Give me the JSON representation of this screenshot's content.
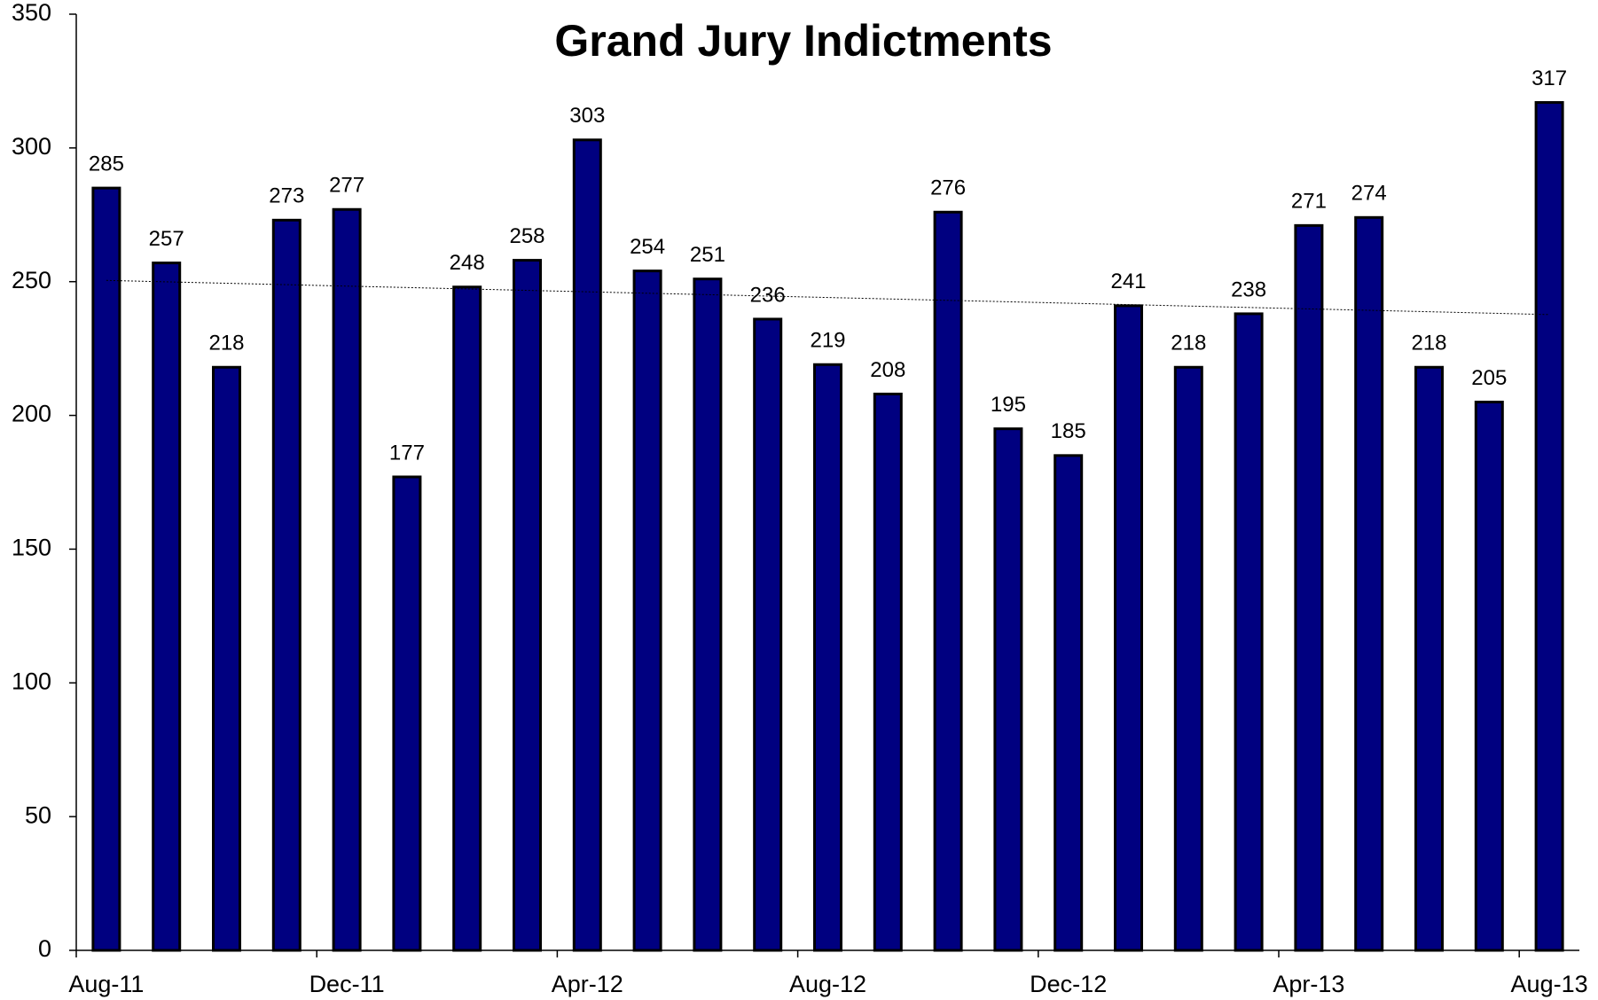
{
  "chart_data": {
    "type": "bar",
    "title": "Grand Jury Indictments",
    "categories": [
      "Aug-11",
      null,
      null,
      null,
      "Dec-11",
      null,
      null,
      null,
      "Apr-12",
      null,
      null,
      null,
      "Aug-12",
      null,
      null,
      null,
      "Dec-12",
      null,
      null,
      null,
      "Apr-13",
      null,
      null,
      null,
      "Aug-13"
    ],
    "values": [
      285,
      257,
      218,
      273,
      277,
      177,
      248,
      258,
      303,
      254,
      251,
      236,
      219,
      208,
      276,
      195,
      185,
      241,
      218,
      238,
      271,
      274,
      218,
      205,
      317
    ],
    "color": "#000080",
    "ylim": [
      0,
      350
    ],
    "yticks": [
      0,
      50,
      100,
      150,
      200,
      250,
      300,
      350
    ],
    "grid": false,
    "trendline": true
  }
}
